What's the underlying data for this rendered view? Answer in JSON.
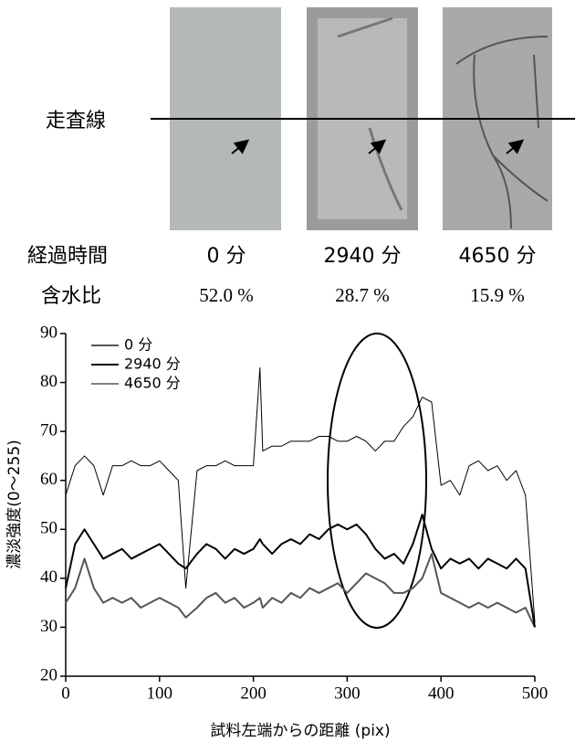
{
  "samples": {
    "scan_line_label": "走査線",
    "rows": [
      {
        "label": "経過時間",
        "values": [
          "0 分",
          "2940 分",
          "4650 分"
        ]
      },
      {
        "label": "含水比",
        "values": [
          "52.0 %",
          "28.7 %",
          "15.9 %"
        ]
      }
    ]
  },
  "chart_data": {
    "type": "line",
    "x_label": "試料左端からの距離 (pix)",
    "y_label": "濃淡強度(0～255)",
    "x": [
      0,
      10,
      20,
      30,
      40,
      50,
      60,
      70,
      80,
      90,
      100,
      110,
      120,
      128,
      140,
      150,
      160,
      170,
      180,
      190,
      200,
      207,
      210,
      220,
      230,
      240,
      250,
      260,
      270,
      280,
      290,
      300,
      310,
      320,
      330,
      340,
      350,
      360,
      370,
      380,
      390,
      400,
      410,
      420,
      430,
      440,
      450,
      460,
      470,
      480,
      490,
      500
    ],
    "series": [
      {
        "name": "0 分",
        "color": "#555555",
        "line_width": 2,
        "values": [
          35,
          38,
          44,
          38,
          35,
          36,
          35,
          36,
          34,
          35,
          36,
          35,
          34,
          32,
          34,
          36,
          37,
          35,
          36,
          34,
          35,
          36,
          34,
          36,
          35,
          37,
          36,
          38,
          37,
          38,
          39,
          37,
          39,
          41,
          40,
          39,
          37,
          37,
          38,
          40,
          45,
          37,
          36,
          35,
          34,
          35,
          34,
          35,
          34,
          33,
          34,
          30
        ]
      },
      {
        "name": "2940 分",
        "color": "#000000",
        "line_width": 2,
        "values": [
          38,
          47,
          50,
          47,
          44,
          45,
          46,
          44,
          45,
          46,
          47,
          45,
          43,
          42,
          45,
          47,
          46,
          44,
          46,
          45,
          46,
          48,
          47,
          45,
          47,
          48,
          47,
          49,
          48,
          50,
          51,
          50,
          51,
          49,
          46,
          44,
          45,
          43,
          47,
          53,
          46,
          42,
          44,
          43,
          44,
          42,
          44,
          43,
          42,
          44,
          42,
          30
        ]
      },
      {
        "name": "4650 分",
        "color": "#000000",
        "line_width": 1,
        "values": [
          57,
          63,
          65,
          63,
          57,
          63,
          63,
          64,
          63,
          63,
          64,
          62,
          60,
          38,
          62,
          63,
          63,
          64,
          63,
          63,
          63,
          83,
          66,
          67,
          67,
          68,
          68,
          68,
          69,
          69,
          68,
          68,
          69,
          68,
          66,
          68,
          68,
          71,
          73,
          77,
          76,
          59,
          60,
          57,
          63,
          64,
          62,
          63,
          60,
          62,
          57,
          31
        ]
      }
    ],
    "xlim": [
      0,
      500
    ],
    "xticks": [
      0,
      100,
      200,
      300,
      400,
      500
    ],
    "ylim": [
      20,
      90
    ],
    "yticks": [
      20,
      30,
      40,
      50,
      60,
      70,
      80,
      90
    ]
  }
}
